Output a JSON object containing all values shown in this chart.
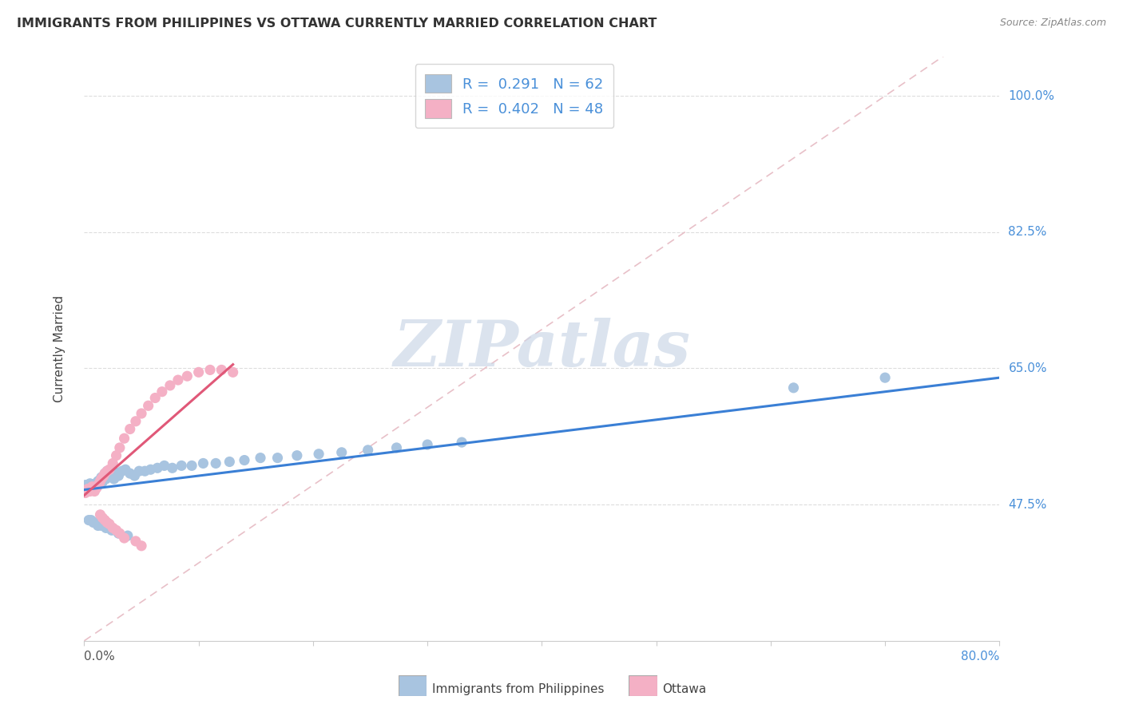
{
  "title": "IMMIGRANTS FROM PHILIPPINES VS OTTAWA CURRENTLY MARRIED CORRELATION CHART",
  "source": "Source: ZipAtlas.com",
  "ylabel": "Currently Married",
  "xlim": [
    0.0,
    0.8
  ],
  "ylim": [
    0.3,
    1.05
  ],
  "ytick_vals": [
    0.475,
    0.65,
    0.825,
    1.0
  ],
  "ytick_labels": [
    "47.5%",
    "65.0%",
    "82.5%",
    "100.0%"
  ],
  "xtick_left_label": "0.0%",
  "xtick_right_label": "80.0%",
  "series1_label": "Immigrants from Philippines",
  "series2_label": "Ottawa",
  "series1_color": "#a8c4e0",
  "series2_color": "#f4b0c5",
  "trendline1_color": "#3a7fd5",
  "trendline2_color": "#e05878",
  "diagonal_color": "#e8c0c8",
  "watermark_color": "#ccd8e8",
  "background_color": "#ffffff",
  "series1_R": "0.291",
  "series1_N": "62",
  "series2_R": "0.402",
  "series2_N": "48",
  "series1_x": [
    0.001,
    0.002,
    0.003,
    0.004,
    0.005,
    0.006,
    0.007,
    0.008,
    0.009,
    0.01,
    0.011,
    0.012,
    0.013,
    0.014,
    0.015,
    0.016,
    0.017,
    0.018,
    0.019,
    0.02,
    0.022,
    0.024,
    0.026,
    0.028,
    0.03,
    0.033,
    0.036,
    0.04,
    0.044,
    0.048,
    0.053,
    0.058,
    0.064,
    0.07,
    0.077,
    0.085,
    0.094,
    0.104,
    0.115,
    0.127,
    0.14,
    0.154,
    0.169,
    0.186,
    0.205,
    0.225,
    0.248,
    0.273,
    0.3,
    0.33,
    0.004,
    0.006,
    0.008,
    0.01,
    0.012,
    0.015,
    0.019,
    0.024,
    0.03,
    0.038,
    0.62,
    0.7
  ],
  "series1_y": [
    0.5,
    0.5,
    0.5,
    0.498,
    0.502,
    0.499,
    0.501,
    0.5,
    0.498,
    0.502,
    0.501,
    0.505,
    0.502,
    0.507,
    0.51,
    0.504,
    0.512,
    0.515,
    0.508,
    0.518,
    0.515,
    0.512,
    0.508,
    0.516,
    0.512,
    0.518,
    0.52,
    0.515,
    0.512,
    0.518,
    0.518,
    0.52,
    0.522,
    0.525,
    0.522,
    0.525,
    0.525,
    0.528,
    0.528,
    0.53,
    0.532,
    0.535,
    0.535,
    0.538,
    0.54,
    0.542,
    0.545,
    0.548,
    0.552,
    0.555,
    0.455,
    0.455,
    0.452,
    0.452,
    0.448,
    0.448,
    0.445,
    0.442,
    0.438,
    0.435,
    0.625,
    0.638
  ],
  "series2_x": [
    0.001,
    0.002,
    0.003,
    0.004,
    0.005,
    0.006,
    0.007,
    0.008,
    0.009,
    0.01,
    0.011,
    0.012,
    0.013,
    0.014,
    0.015,
    0.016,
    0.017,
    0.018,
    0.02,
    0.022,
    0.025,
    0.028,
    0.031,
    0.035,
    0.04,
    0.045,
    0.05,
    0.056,
    0.062,
    0.068,
    0.075,
    0.082,
    0.09,
    0.1,
    0.11,
    0.12,
    0.13,
    0.014,
    0.016,
    0.018,
    0.02,
    0.022,
    0.025,
    0.028,
    0.031,
    0.035,
    0.045,
    0.05
  ],
  "series2_y": [
    0.49,
    0.492,
    0.495,
    0.494,
    0.492,
    0.495,
    0.498,
    0.494,
    0.492,
    0.495,
    0.497,
    0.5,
    0.502,
    0.505,
    0.508,
    0.51,
    0.512,
    0.515,
    0.518,
    0.52,
    0.528,
    0.538,
    0.548,
    0.56,
    0.572,
    0.582,
    0.592,
    0.602,
    0.612,
    0.62,
    0.628,
    0.635,
    0.64,
    0.645,
    0.648,
    0.648,
    0.645,
    0.462,
    0.458,
    0.455,
    0.452,
    0.45,
    0.445,
    0.442,
    0.438,
    0.432,
    0.428,
    0.422
  ],
  "trendline1": {
    "x": [
      0.0,
      0.8
    ],
    "y": [
      0.494,
      0.638
    ]
  },
  "trendline2": {
    "x": [
      0.0,
      0.13
    ],
    "y": [
      0.487,
      0.655
    ]
  },
  "diagonal": {
    "x": [
      0.0,
      0.8
    ],
    "y": [
      0.3,
      1.1
    ]
  }
}
